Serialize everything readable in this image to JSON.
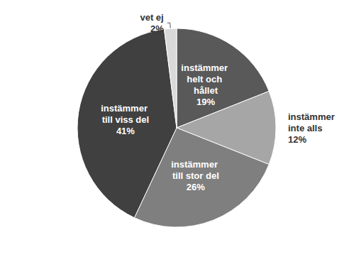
{
  "chart_data": {
    "type": "pie",
    "categories": [
      "instämmer helt och hållet",
      "instämmer inte alls",
      "instämmer till stor del",
      "instämmer till viss del",
      "vet ej"
    ],
    "values": [
      19,
      12,
      26,
      41,
      2
    ],
    "value_labels": [
      "19%",
      "12%",
      "26%",
      "41%",
      "2%"
    ],
    "colors": [
      "#595959",
      "#a6a6a6",
      "#7f7f7f",
      "#404040",
      "#d9d9d9"
    ],
    "data_labels": true
  }
}
